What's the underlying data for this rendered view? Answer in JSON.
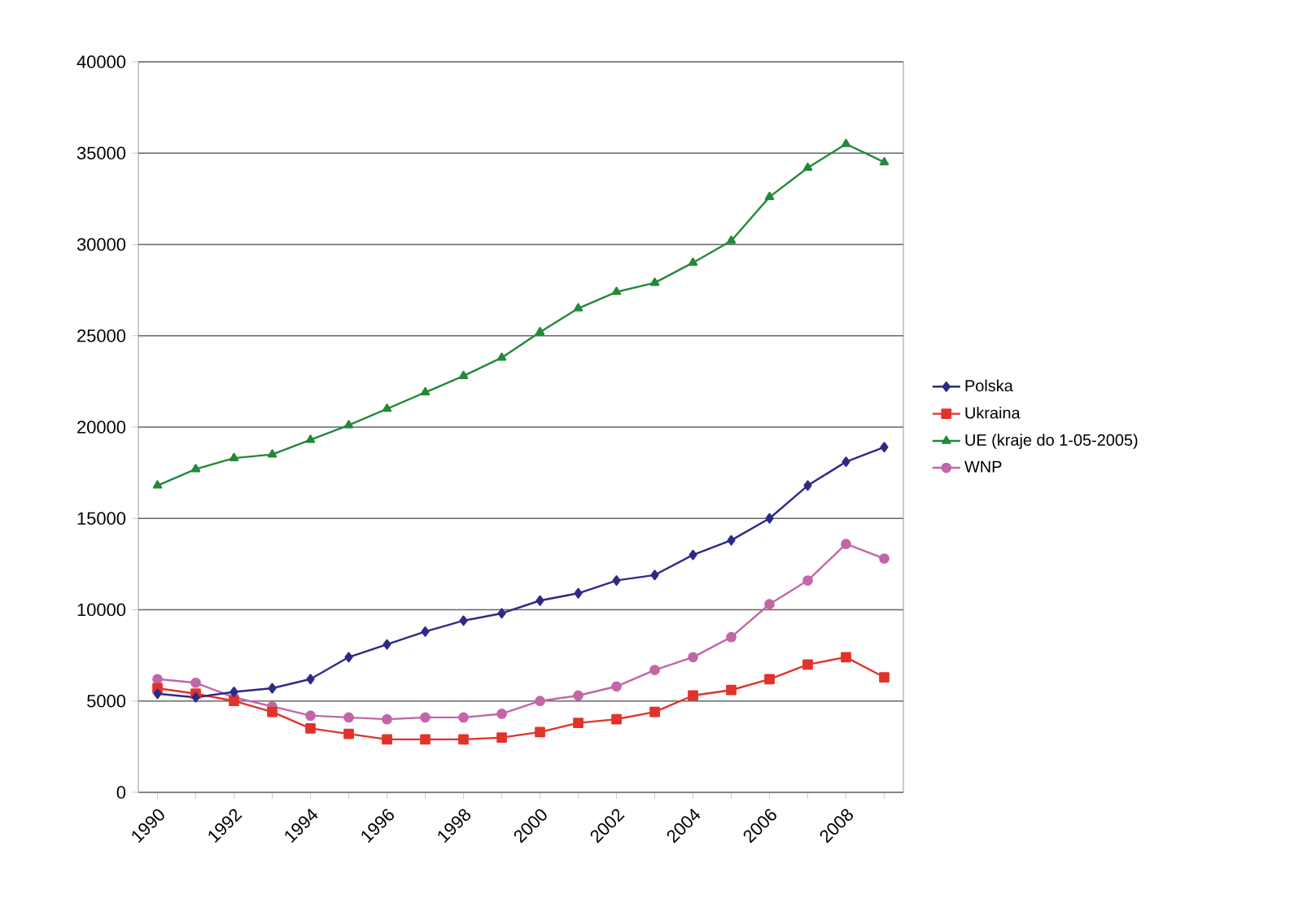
{
  "chart_data": {
    "type": "line",
    "categories": [
      "1990",
      null,
      "1992",
      null,
      "1994",
      null,
      "1996",
      null,
      "1998",
      null,
      "2000",
      null,
      "2002",
      null,
      "2004",
      null,
      "2006",
      null,
      "2008",
      null
    ],
    "series": [
      {
        "name": "Polska",
        "color": "#2e2a86",
        "marker": "diamond",
        "values": [
          5400,
          5200,
          5500,
          5700,
          6200,
          7400,
          8100,
          8800,
          9400,
          9800,
          10500,
          10900,
          11600,
          11900,
          13000,
          13800,
          15000,
          16800,
          18100,
          18900
        ]
      },
      {
        "name": "Ukraina",
        "color": "#e2332b",
        "marker": "square",
        "values": [
          5700,
          5400,
          5000,
          4400,
          3500,
          3200,
          2900,
          2900,
          2900,
          3000,
          3300,
          3800,
          4000,
          4400,
          5300,
          5600,
          6200,
          7000,
          7400,
          6300
        ]
      },
      {
        "name": "UE (kraje do 1-05-2005)",
        "color": "#22893a",
        "marker": "triangle",
        "values": [
          16800,
          17700,
          18300,
          18500,
          19300,
          20100,
          21000,
          21900,
          22800,
          23800,
          25200,
          26500,
          27400,
          27900,
          29000,
          30200,
          32600,
          34200,
          35500,
          34500
        ]
      },
      {
        "name": "WNP",
        "color": "#c266a8",
        "marker": "circle",
        "values": [
          6200,
          6000,
          5200,
          4700,
          4200,
          4100,
          4000,
          4100,
          4100,
          4300,
          5000,
          5300,
          5800,
          6700,
          7400,
          8500,
          10300,
          11600,
          13600,
          12800
        ]
      }
    ],
    "ylim": [
      0,
      40000
    ],
    "yticks": [
      0,
      5000,
      10000,
      15000,
      20000,
      25000,
      30000,
      35000,
      40000
    ],
    "grid": "y",
    "legend": "right",
    "line_style": "solid"
  }
}
